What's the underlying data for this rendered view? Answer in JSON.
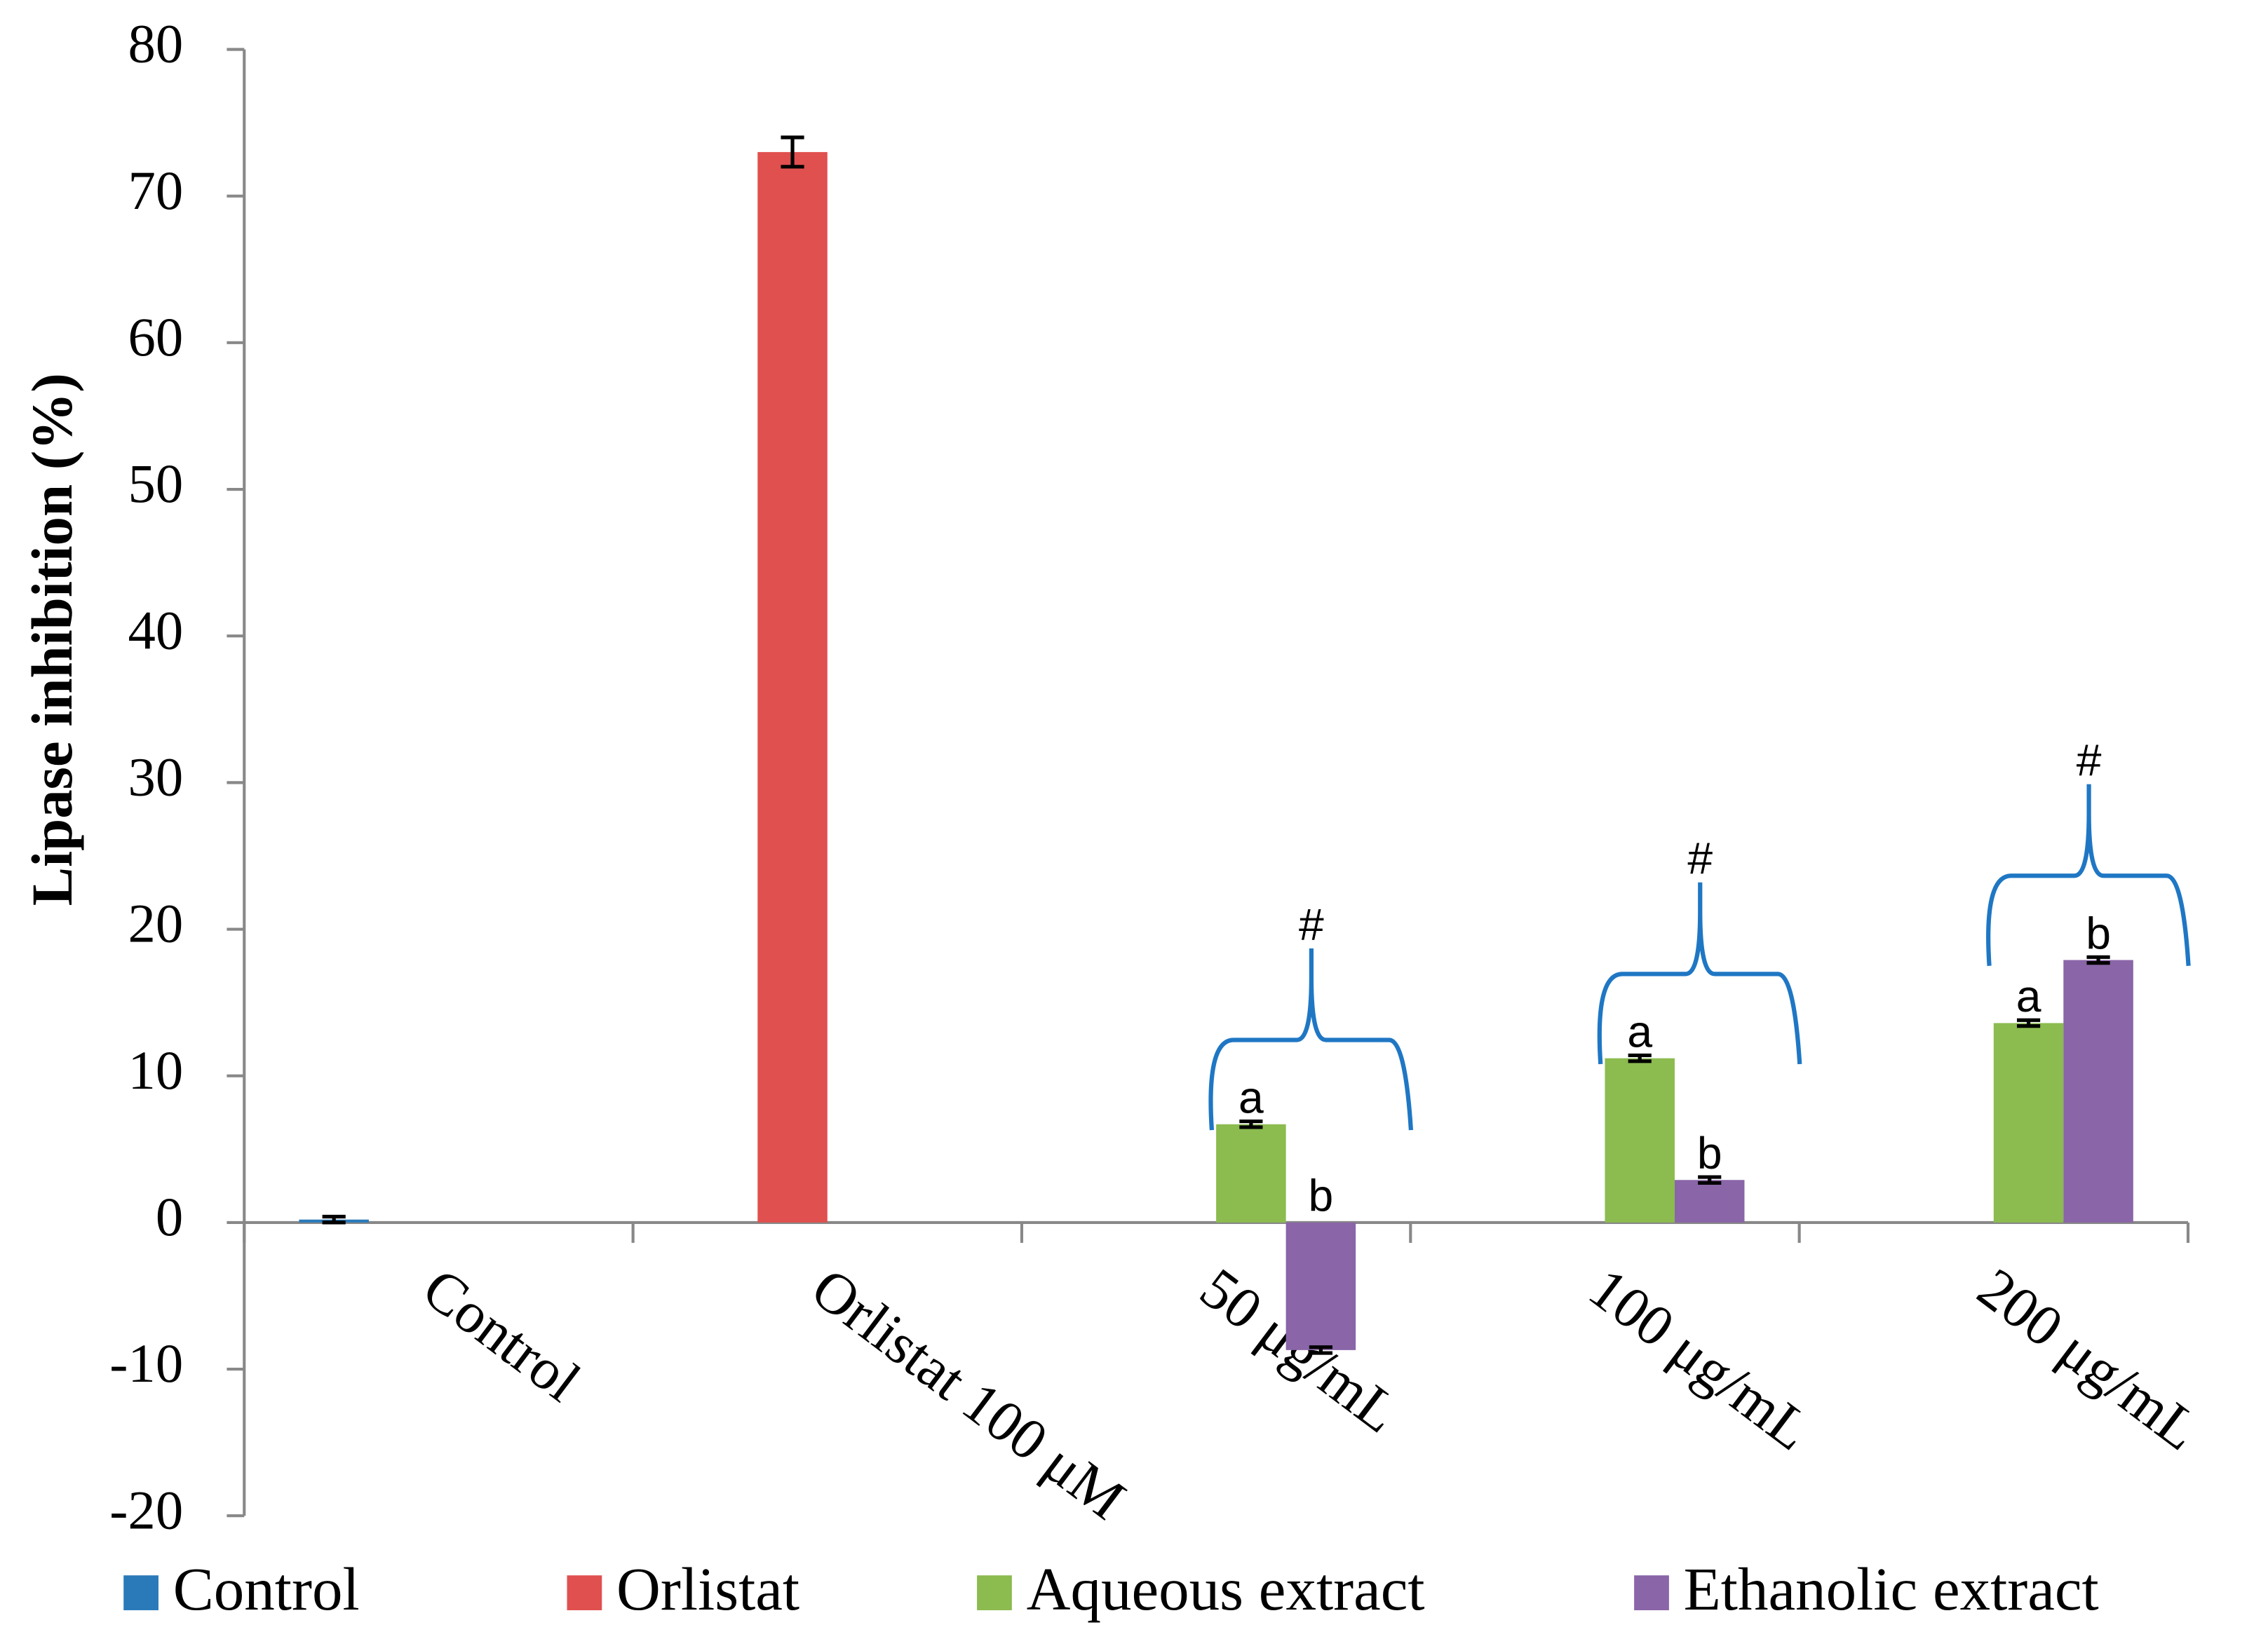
{
  "chart_data": {
    "type": "bar",
    "y_label": "Lipase inhibition (%)",
    "categories": [
      "Control",
      "Orlistat 100 μM",
      "50 μg/mL",
      "100 μg/mL",
      "200 μg/mL"
    ],
    "series": [
      {
        "name": "Control",
        "color": "#2a7ab9",
        "values": [
          0.2,
          null,
          null,
          null,
          null
        ],
        "errors": [
          0.2,
          null,
          null,
          null,
          null
        ]
      },
      {
        "name": "Orlistat",
        "color": "#e0504f",
        "values": [
          null,
          73,
          null,
          null,
          null
        ],
        "errors": [
          null,
          1.0,
          null,
          null,
          null
        ]
      },
      {
        "name": "Aqueous extract",
        "color": "#8cbb4f",
        "values": [
          null,
          null,
          6.7,
          11.2,
          13.6
        ],
        "errors": [
          null,
          null,
          0.2,
          0.2,
          0.2
        ]
      },
      {
        "name": "Ethanolic extract",
        "color": "#8a65a8",
        "values": [
          null,
          null,
          -8.7,
          2.9,
          17.9
        ],
        "errors": [
          null,
          null,
          0.2,
          0.2,
          0.2
        ]
      }
    ],
    "annotations": [
      {
        "text": "a",
        "category": "50 μg/mL",
        "series": "Aqueous extract"
      },
      {
        "text": "b",
        "category": "50 μg/mL",
        "series": "Ethanolic extract"
      },
      {
        "text": "#",
        "category": "50 μg/mL"
      },
      {
        "text": "a",
        "category": "100 μg/mL",
        "series": "Aqueous extract"
      },
      {
        "text": "b",
        "category": "100 μg/mL",
        "series": "Ethanolic extract"
      },
      {
        "text": "#",
        "category": "100 μg/mL"
      },
      {
        "text": "a",
        "category": "200 μg/mL",
        "series": "Aqueous extract"
      },
      {
        "text": "b",
        "category": "200 μg/mL",
        "series": "Ethanolic extract"
      },
      {
        "text": "#",
        "category": "200 μg/mL"
      }
    ],
    "ylim": [
      -20,
      80
    ],
    "yticks": [
      -20,
      -10,
      0,
      10,
      20,
      30,
      40,
      50,
      60,
      70,
      80
    ],
    "legend": "bottom"
  }
}
